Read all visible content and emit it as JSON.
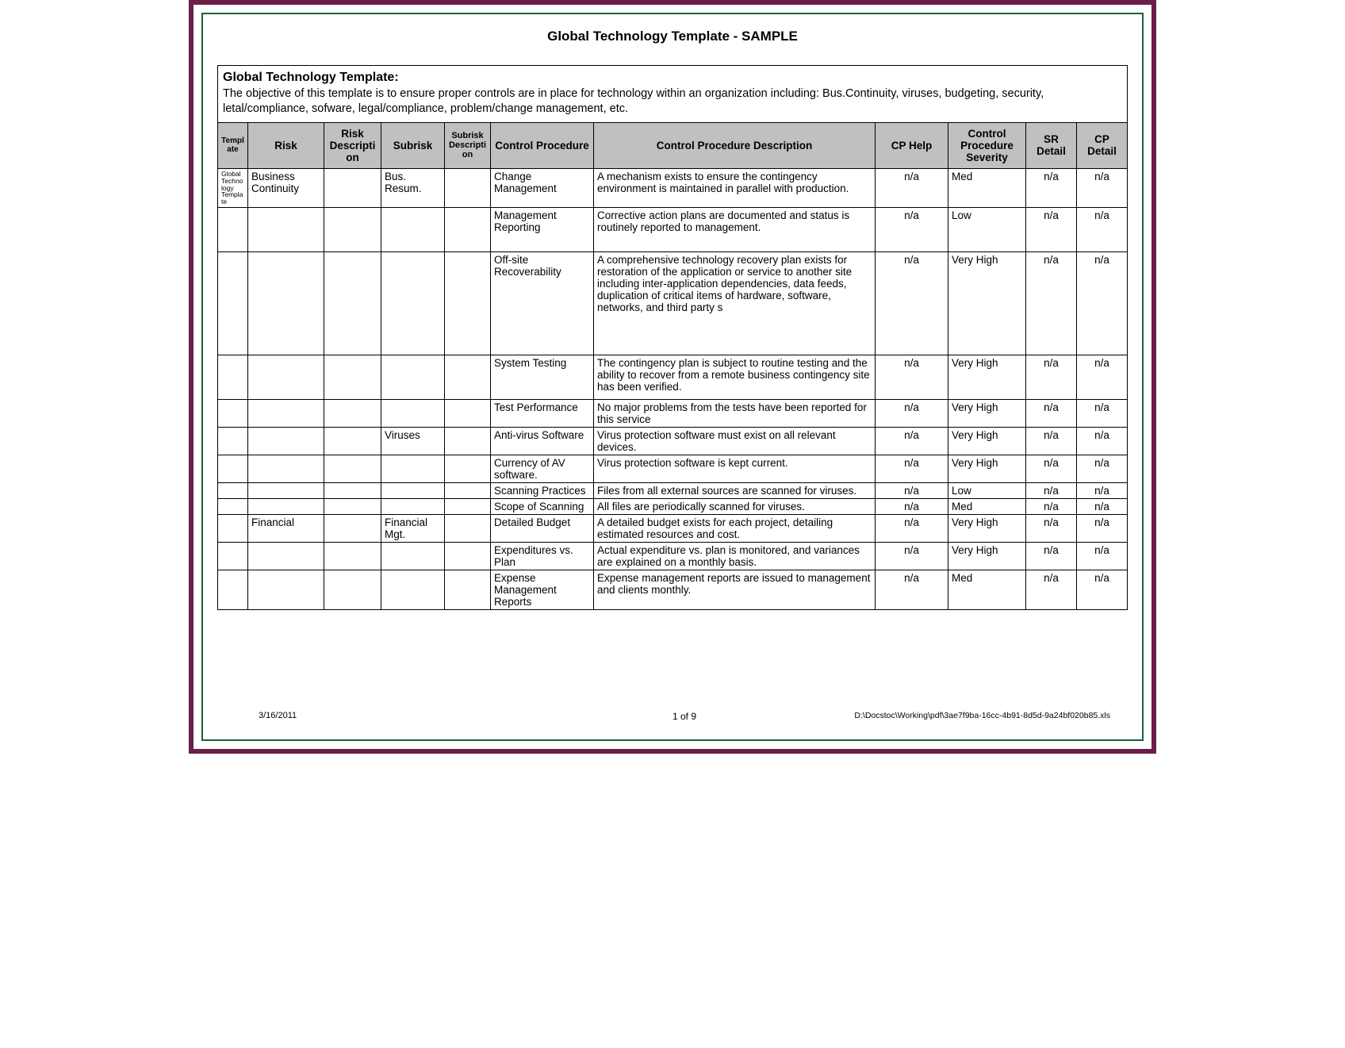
{
  "doc": {
    "title": "Global Technology Template - SAMPLE",
    "intro_title": "Global Technology Template:",
    "intro_body": "The objective of this template is to ensure proper controls are in place for technology within an organization including:  Bus.Continuity, viruses, budgeting, security, letal/compliance, sofware, legal/compliance, problem/change management, etc."
  },
  "columns": [
    "Template",
    "Risk",
    "Risk Description",
    "Subrisk",
    "Subrisk Description",
    "Control Procedure",
    "Control Procedure Description",
    "CP Help",
    "Control Procedure Severity",
    "SR Detail",
    "CP Detail"
  ],
  "rows": [
    {
      "template": "Global Technology Template",
      "risk": "Business Continuity",
      "riskdesc": "",
      "subrisk": "Bus. Resum.",
      "subdesc": "",
      "cproc": "Change Management",
      "cpdesc": "A mechanism exists to ensure the contingency environment is maintained in parallel with production.",
      "cphelp": "n/a",
      "cps": "Med",
      "sr": "n/a",
      "cp": "n/a"
    },
    {
      "template": "",
      "risk": "",
      "riskdesc": "",
      "subrisk": "",
      "subdesc": "",
      "cproc": "Management Reporting",
      "cpdesc": "Corrective action plans are documented and status is routinely reported to management.",
      "cphelp": "n/a",
      "cps": "Low",
      "sr": "n/a",
      "cp": "n/a",
      "tall": true
    },
    {
      "template": "",
      "risk": "",
      "riskdesc": "",
      "subrisk": "",
      "subdesc": "",
      "cproc": "Off-site Recoverability",
      "cpdesc": "A comprehensive technology recovery plan exists for restoration of the application or service to another site including inter-application dependencies, data feeds, duplication of critical items of hardware, software, networks, and third party s",
      "cphelp": "n/a",
      "cps": "Very High",
      "sr": "n/a",
      "cp": "n/a",
      "xtall": true
    },
    {
      "template": "",
      "risk": "",
      "riskdesc": "",
      "subrisk": "",
      "subdesc": "",
      "cproc": "System Testing",
      "cpdesc": "The contingency plan is subject to routine testing and the ability to recover from a remote business contingency site has been verified.",
      "cphelp": "n/a",
      "cps": "Very High",
      "sr": "n/a",
      "cp": "n/a",
      "tall": true
    },
    {
      "template": "",
      "risk": "",
      "riskdesc": "",
      "subrisk": "",
      "subdesc": "",
      "cproc": "Test Performance",
      "cpdesc": "No major problems from the tests have been reported for this service",
      "cphelp": "n/a",
      "cps": "Very High",
      "sr": "n/a",
      "cp": "n/a"
    },
    {
      "template": "",
      "risk": "",
      "riskdesc": "",
      "subrisk": "Viruses",
      "subdesc": "",
      "cproc": "Anti-virus Software",
      "cpdesc": "Virus protection software must exist on all relevant devices.",
      "cphelp": "n/a",
      "cps": "Very High",
      "sr": "n/a",
      "cp": "n/a"
    },
    {
      "template": "",
      "risk": "",
      "riskdesc": "",
      "subrisk": "",
      "subdesc": "",
      "cproc": "Currency of AV software.",
      "cpdesc": "Virus protection software is kept current.",
      "cphelp": "n/a",
      "cps": "Very High",
      "sr": "n/a",
      "cp": "n/a"
    },
    {
      "template": "",
      "risk": "",
      "riskdesc": "",
      "subrisk": "",
      "subdesc": "",
      "cproc": "Scanning Practices",
      "cpdesc": "Files from all external sources are scanned for viruses.",
      "cphelp": "n/a",
      "cps": "Low",
      "sr": "n/a",
      "cp": "n/a"
    },
    {
      "template": "",
      "risk": "",
      "riskdesc": "",
      "subrisk": "",
      "subdesc": "",
      "cproc": "Scope of Scanning",
      "cpdesc": "All files are periodically scanned for viruses.",
      "cphelp": "n/a",
      "cps": "Med",
      "sr": "n/a",
      "cp": "n/a"
    },
    {
      "template": "",
      "risk": "Financial",
      "riskdesc": "",
      "subrisk": "Financial Mgt.",
      "subdesc": "",
      "cproc": "Detailed Budget",
      "cpdesc": "A detailed budget exists for each project, detailing estimated resources and cost.",
      "cphelp": "n/a",
      "cps": "Very High",
      "sr": "n/a",
      "cp": "n/a"
    },
    {
      "template": "",
      "risk": "",
      "riskdesc": "",
      "subrisk": "",
      "subdesc": "",
      "cproc": "Expenditures vs. Plan",
      "cpdesc": "Actual expenditure vs. plan is monitored, and variances are explained on a monthly basis.",
      "cphelp": "n/a",
      "cps": "Very High",
      "sr": "n/a",
      "cp": "n/a"
    },
    {
      "template": "",
      "risk": "",
      "riskdesc": "",
      "subrisk": "",
      "subdesc": "",
      "cproc": "Expense Management Reports",
      "cpdesc": "Expense management reports are issued to management and clients monthly.",
      "cphelp": "n/a",
      "cps": "Med",
      "sr": "n/a",
      "cp": "n/a"
    }
  ],
  "footer": {
    "date": "3/16/2011",
    "page": "1 of 9",
    "path": "D:\\Docstoc\\Working\\pdf\\3ae7f9ba-16cc-4b91-8d5d-9a24bf020b85.xls"
  },
  "style": {
    "outer_border_color": "#6b1e4a",
    "inner_border_color": "#16623a",
    "header_bg": "#c0c0c0",
    "font_family": "Arial"
  }
}
